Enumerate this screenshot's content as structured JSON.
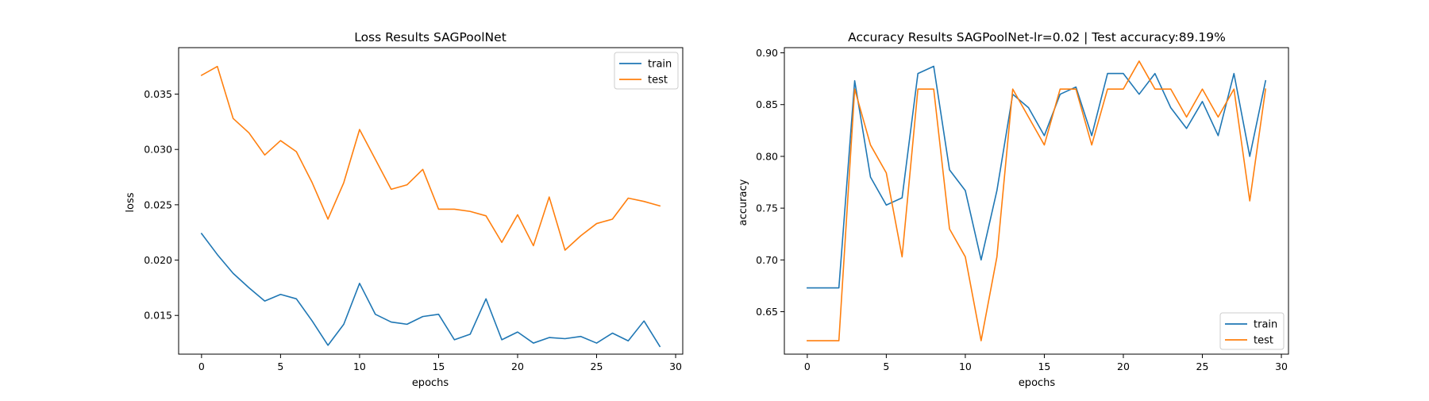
{
  "colors": {
    "train": "#1f77b4",
    "test": "#ff7f0e"
  },
  "chart_data": [
    {
      "type": "line",
      "title": "Loss Results SAGPoolNet",
      "xlabel": "epochs",
      "ylabel": "loss",
      "xlim": [
        -1.45,
        30.45
      ],
      "ylim": [
        0.0115,
        0.0392
      ],
      "xticks": [
        0,
        5,
        10,
        15,
        20,
        25,
        30
      ],
      "yticks": [
        0.015,
        0.02,
        0.025,
        0.03,
        0.035
      ],
      "ytick_labels": [
        "0.015",
        "0.020",
        "0.025",
        "0.030",
        "0.035"
      ],
      "x": [
        0,
        1,
        2,
        3,
        4,
        5,
        6,
        7,
        8,
        9,
        10,
        11,
        12,
        13,
        14,
        15,
        16,
        17,
        18,
        19,
        20,
        21,
        22,
        23,
        24,
        25,
        26,
        27,
        28,
        29
      ],
      "legend_position": "upper right",
      "series": [
        {
          "name": "train",
          "color_key": "train",
          "values": [
            0.0224,
            0.0205,
            0.0188,
            0.0175,
            0.0163,
            0.0169,
            0.0165,
            0.0145,
            0.0123,
            0.0142,
            0.0179,
            0.0151,
            0.0144,
            0.0142,
            0.0149,
            0.0151,
            0.0128,
            0.0133,
            0.0165,
            0.0128,
            0.0135,
            0.0125,
            0.013,
            0.0129,
            0.0131,
            0.0125,
            0.0134,
            0.0127,
            0.0145,
            0.0122
          ]
        },
        {
          "name": "test",
          "color_key": "test",
          "values": [
            0.0367,
            0.0375,
            0.0328,
            0.0315,
            0.0295,
            0.0308,
            0.0298,
            0.027,
            0.0237,
            0.027,
            0.0318,
            0.0291,
            0.0264,
            0.0268,
            0.0282,
            0.0246,
            0.0246,
            0.0244,
            0.024,
            0.0216,
            0.0241,
            0.0213,
            0.0257,
            0.0209,
            0.0222,
            0.0233,
            0.0237,
            0.0256,
            0.0253,
            0.0249
          ]
        }
      ]
    },
    {
      "type": "line",
      "title": "Accuracy Results SAGPoolNet-lr=0.02 | Test accuracy:89.19%",
      "xlabel": "epochs",
      "ylabel": "accuracy",
      "xlim": [
        -1.45,
        30.45
      ],
      "ylim": [
        0.609,
        0.905
      ],
      "xticks": [
        0,
        5,
        10,
        15,
        20,
        25,
        30
      ],
      "yticks": [
        0.65,
        0.7,
        0.75,
        0.8,
        0.85,
        0.9
      ],
      "ytick_labels": [
        "0.65",
        "0.70",
        "0.75",
        "0.80",
        "0.85",
        "0.90"
      ],
      "x": [
        0,
        1,
        2,
        3,
        4,
        5,
        6,
        7,
        8,
        9,
        10,
        11,
        12,
        13,
        14,
        15,
        16,
        17,
        18,
        19,
        20,
        21,
        22,
        23,
        24,
        25,
        26,
        27,
        28,
        29
      ],
      "legend_position": "lower right",
      "series": [
        {
          "name": "train",
          "color_key": "train",
          "values": [
            0.673,
            0.673,
            0.673,
            0.873,
            0.78,
            0.753,
            0.76,
            0.88,
            0.887,
            0.787,
            0.767,
            0.7,
            0.767,
            0.86,
            0.847,
            0.82,
            0.86,
            0.867,
            0.82,
            0.88,
            0.88,
            0.86,
            0.88,
            0.847,
            0.827,
            0.853,
            0.82,
            0.88,
            0.8,
            0.873
          ]
        },
        {
          "name": "test",
          "color_key": "test",
          "values": [
            0.622,
            0.622,
            0.622,
            0.865,
            0.811,
            0.784,
            0.703,
            0.865,
            0.865,
            0.73,
            0.703,
            0.622,
            0.703,
            0.865,
            0.838,
            0.811,
            0.865,
            0.865,
            0.811,
            0.865,
            0.865,
            0.892,
            0.865,
            0.865,
            0.838,
            0.865,
            0.838,
            0.865,
            0.757,
            0.865
          ]
        }
      ]
    }
  ]
}
